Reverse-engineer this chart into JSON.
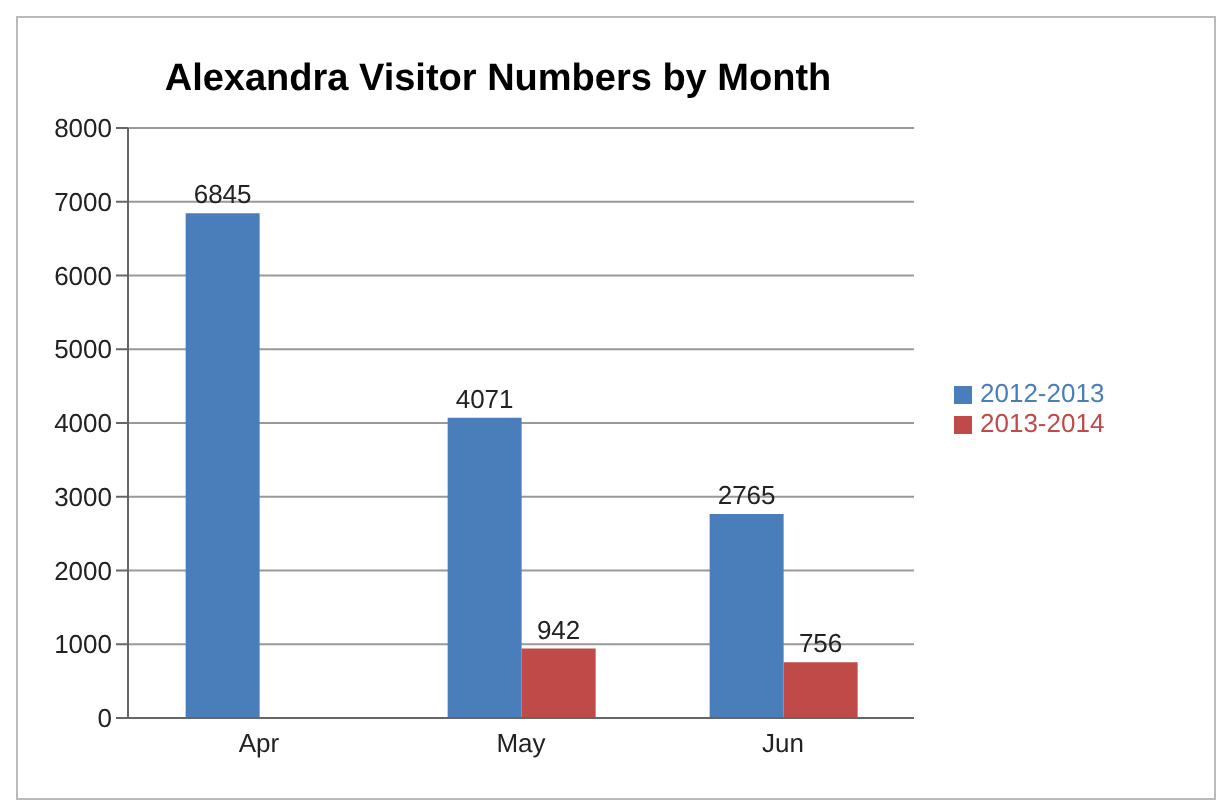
{
  "chart_data": {
    "type": "bar",
    "title": "Alexandra Visitor Numbers by Month",
    "categories": [
      "Apr",
      "May",
      "Jun"
    ],
    "series": [
      {
        "name": "2012-2013",
        "color": "#4a7ebb",
        "values": [
          6845,
          4071,
          2765
        ]
      },
      {
        "name": "2013-2014",
        "color": "#be4b48",
        "values": [
          null,
          942,
          756
        ]
      }
    ],
    "ylim": [
      0,
      8000
    ],
    "yticks": [
      0,
      1000,
      2000,
      3000,
      4000,
      5000,
      6000,
      7000,
      8000
    ],
    "grid": "y",
    "legend": "right",
    "data_labels": true
  }
}
